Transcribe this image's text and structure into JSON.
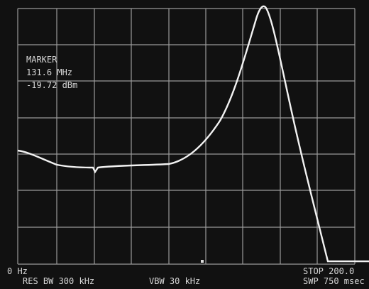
{
  "marker": {
    "label": "MARKER",
    "frequency": "131.6 MHz",
    "level": "-19.72 dBm"
  },
  "footer": {
    "start": "0 Hz",
    "res_bw": "RES BW 300 kHz",
    "vbw": "VBW 30 kHz",
    "stop": "STOP 200.0",
    "sweep": "SWP 750 msec"
  }
}
